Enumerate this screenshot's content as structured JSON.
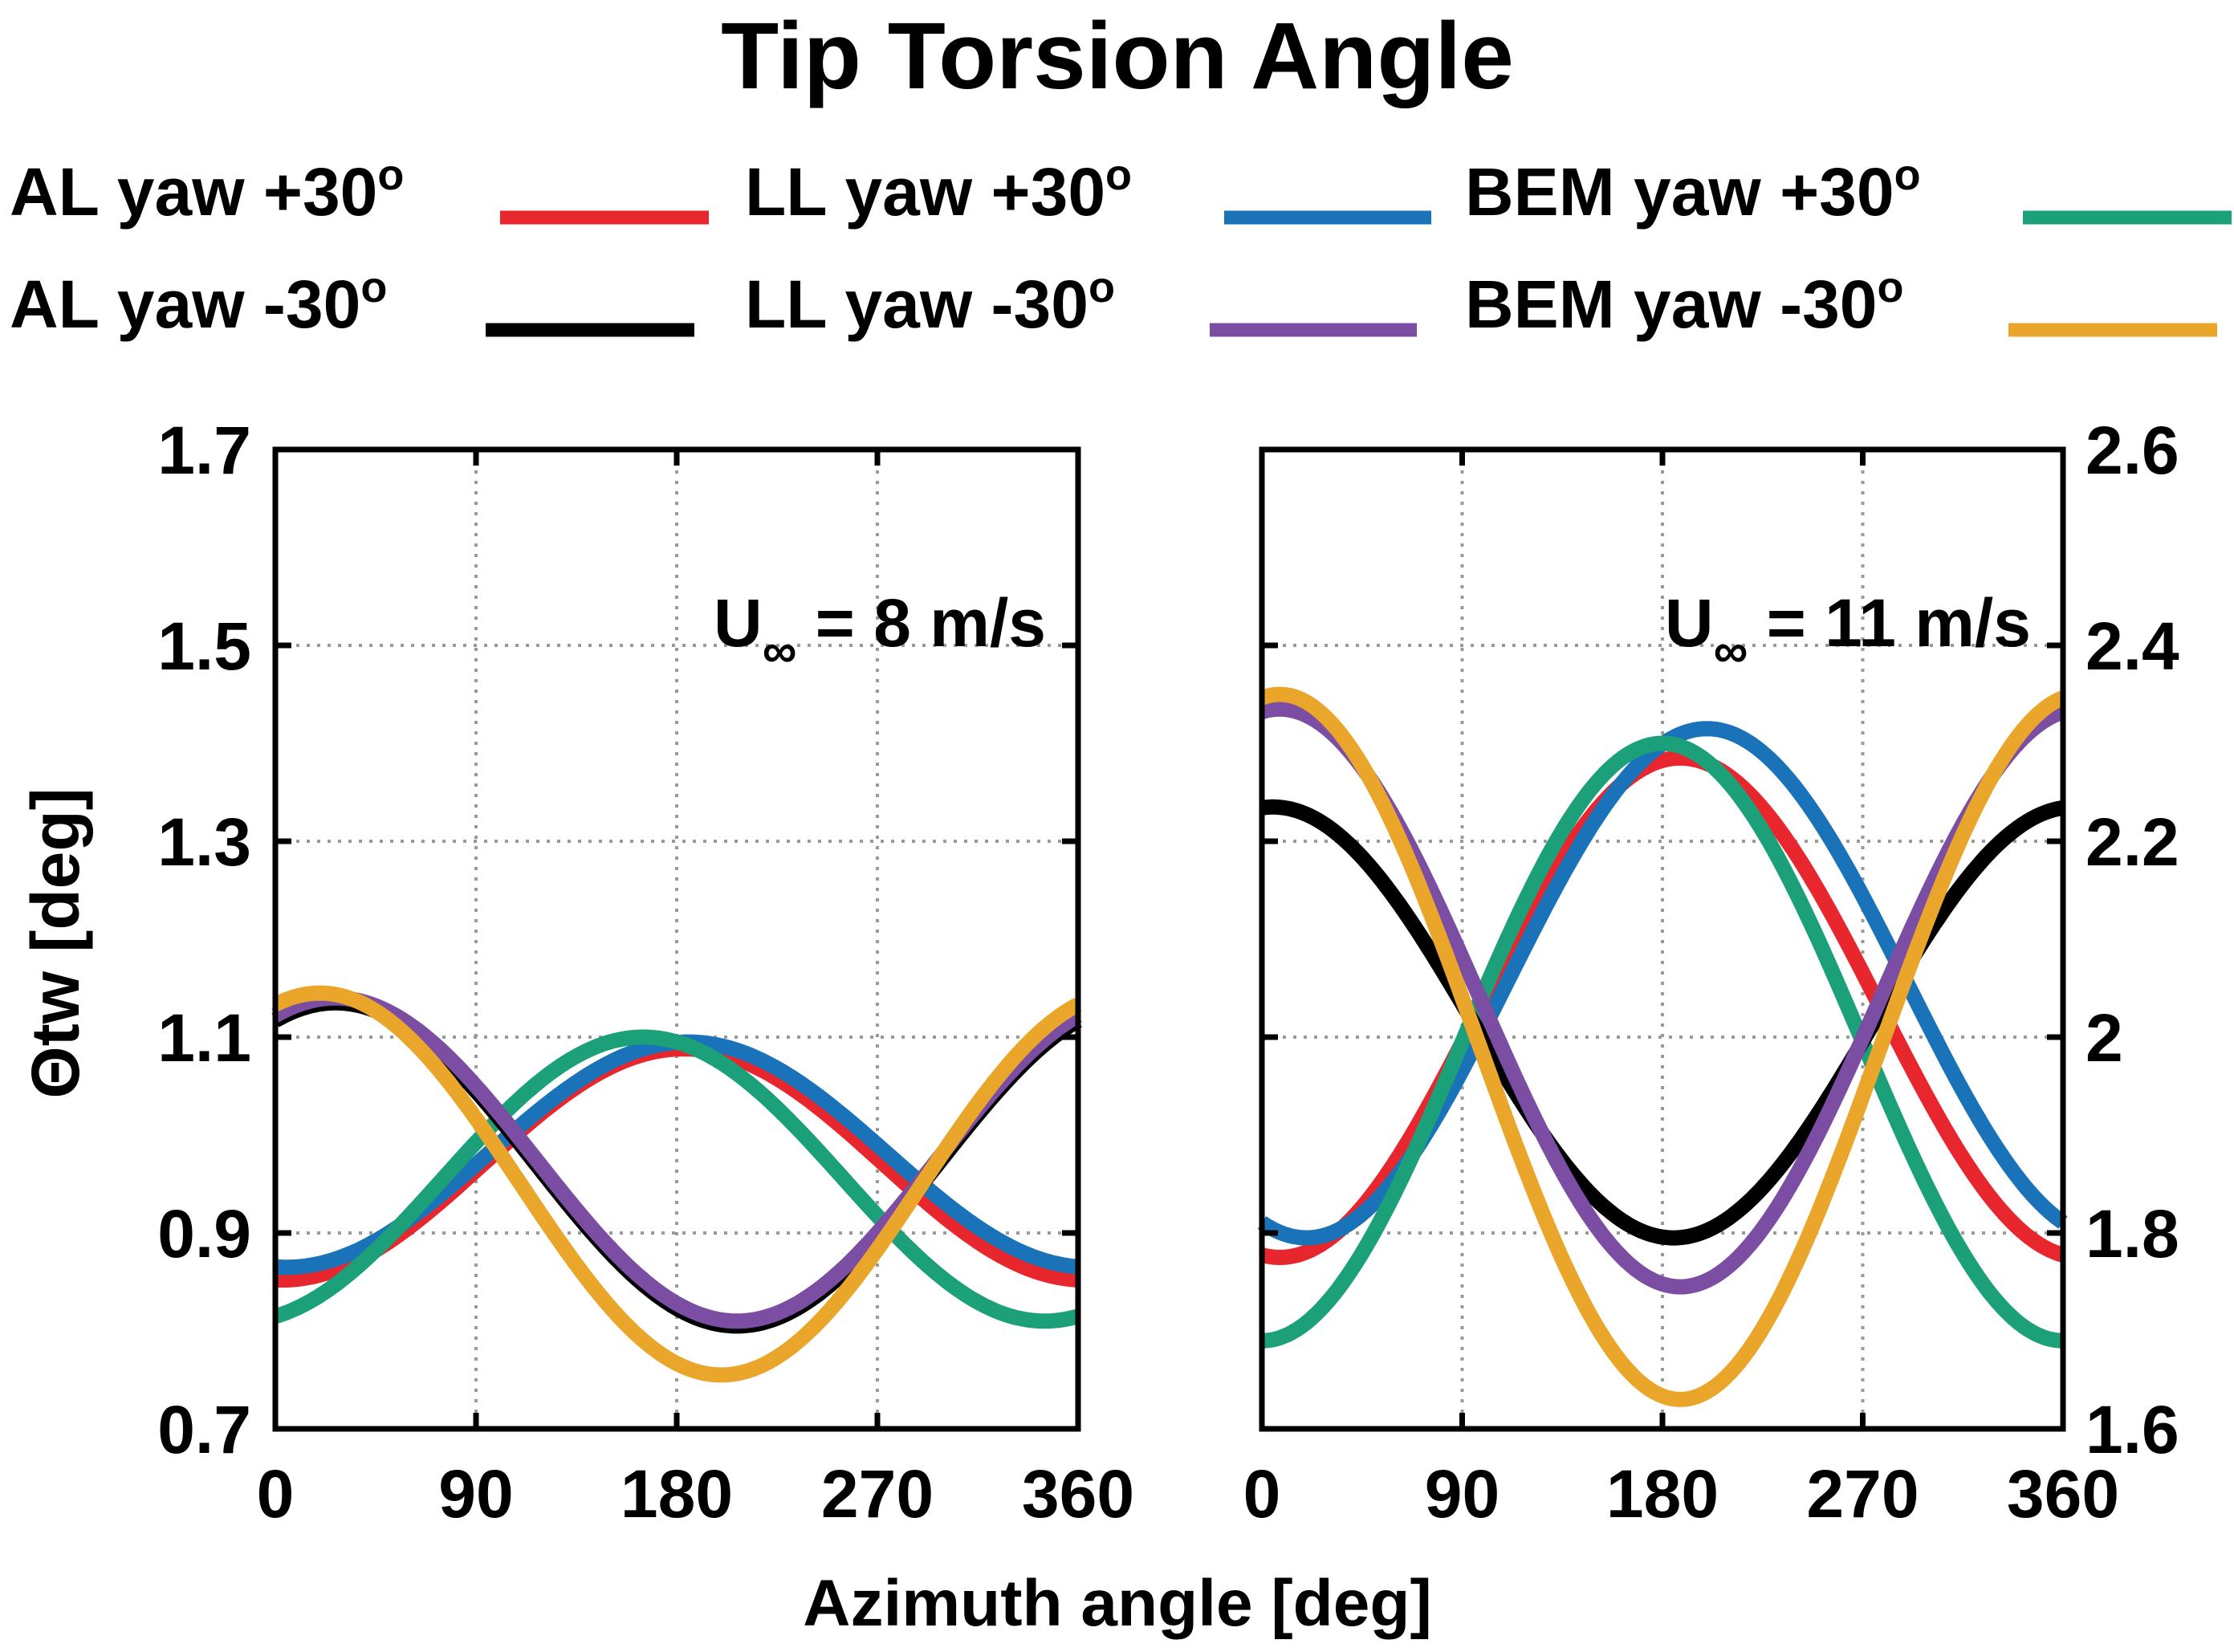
{
  "title": "Tip Torsion Angle",
  "legend": {
    "entries": [
      {
        "text": "AL yaw +30",
        "sup": "o",
        "color": "#e8262e"
      },
      {
        "text": "LL yaw +30",
        "sup": "o",
        "color": "#1a73b8"
      },
      {
        "text": "BEM yaw +30",
        "sup": "o",
        "color": "#1ba07a"
      },
      {
        "text": "AL yaw -30",
        "sup": "o",
        "color": "#000000"
      },
      {
        "text": "LL yaw -30",
        "sup": "o",
        "color": "#7b4ea3"
      },
      {
        "text": "BEM yaw -30",
        "sup": "o",
        "color": "#e9a62a"
      }
    ]
  },
  "ylabel": "Θtw [deg]",
  "xlabel": "Azimuth angle [deg]",
  "chart_data": [
    {
      "type": "line",
      "annotation": {
        "main": "U",
        "sub": "∞",
        "rest": " = 8 m/s"
      },
      "xlim": [
        0,
        360
      ],
      "xticks": [
        "0",
        "90",
        "180",
        "270",
        "360"
      ],
      "xtick_values": [
        0,
        90,
        180,
        270,
        360
      ],
      "ylim": [
        0.7,
        1.7
      ],
      "yticks": [
        "0.7",
        "0.9",
        "1.1",
        "1.3",
        "1.5",
        "1.7"
      ],
      "ytick_values": [
        0.7,
        0.9,
        1.1,
        1.3,
        1.5,
        1.7
      ],
      "yaxis_side": "left",
      "series": [
        {
          "name": "AL yaw +30",
          "color": "#e8262e",
          "mean": 0.97,
          "amp": 0.118,
          "peak": 183
        },
        {
          "name": "LL yaw +30",
          "color": "#1a73b8",
          "mean": 0.98,
          "amp": 0.115,
          "peak": 185
        },
        {
          "name": "BEM yaw +30",
          "color": "#1ba07a",
          "mean": 0.955,
          "amp": 0.145,
          "peak": 165
        },
        {
          "name": "AL yaw -30",
          "color": "#000000",
          "mean": 0.97,
          "amp": 0.165,
          "peak": 27
        },
        {
          "name": "LL yaw -30",
          "color": "#7b4ea3",
          "mean": 0.975,
          "amp": 0.165,
          "peak": 27
        },
        {
          "name": "BEM yaw -30",
          "color": "#e9a62a",
          "mean": 0.95,
          "amp": 0.195,
          "peak": 20
        }
      ]
    },
    {
      "type": "line",
      "annotation": {
        "main": "U",
        "sub": "∞",
        "rest": " = 11 m/s"
      },
      "xlim": [
        0,
        360
      ],
      "xticks": [
        "0",
        "90",
        "180",
        "270",
        "360"
      ],
      "xtick_values": [
        0,
        90,
        180,
        270,
        360
      ],
      "ylim": [
        1.6,
        2.6
      ],
      "yticks": [
        "1.6",
        "1.8",
        "2",
        "2.2",
        "2.4",
        "2.6"
      ],
      "ytick_values": [
        1.6,
        1.8,
        2.0,
        2.2,
        2.4,
        2.6
      ],
      "yaxis_side": "right",
      "series": [
        {
          "name": "AL yaw +30",
          "color": "#e8262e",
          "mean": 2.03,
          "amp": 0.255,
          "peak": 188
        },
        {
          "name": "LL yaw +30",
          "color": "#1a73b8",
          "mean": 2.055,
          "amp": 0.26,
          "peak": 200
        },
        {
          "name": "BEM yaw +30",
          "color": "#1ba07a",
          "mean": 1.995,
          "amp": 0.305,
          "peak": 180
        },
        {
          "name": "AL yaw -30",
          "color": "#000000",
          "mean": 2.015,
          "amp": 0.22,
          "peak": 5
        },
        {
          "name": "LL yaw -30",
          "color": "#7b4ea3",
          "mean": 2.04,
          "amp": 0.295,
          "peak": 8
        },
        {
          "name": "BEM yaw -30",
          "color": "#e9a62a",
          "mean": 1.99,
          "amp": 0.36,
          "peak": 8
        }
      ]
    }
  ]
}
